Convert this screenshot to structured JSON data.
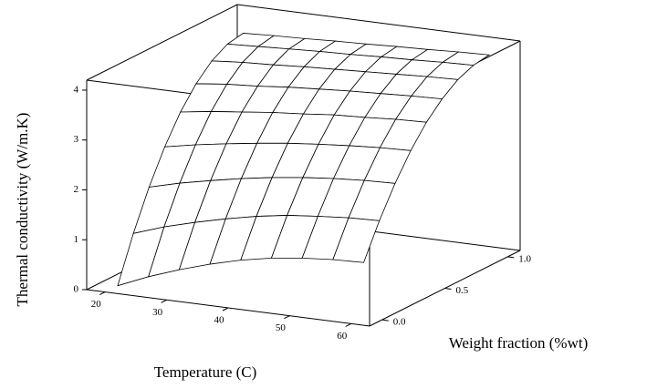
{
  "chart_data": {
    "type": "surface3d",
    "xlabel": "Temperature (C)",
    "ylabel": "Weight fraction (%wt)",
    "zlabel": "Thermal conductivity (W/m.K)",
    "x": [
      20,
      25,
      30,
      35,
      40,
      45,
      50,
      55,
      60
    ],
    "y": [
      0,
      0.125,
      0.25,
      0.375,
      0.5,
      0.625,
      0.75,
      0.875,
      1
    ],
    "z": [
      [
        0,
        0.26,
        0.48,
        0.67,
        0.83,
        0.95,
        1.03,
        1.08,
        1.1
      ],
      [
        0.89,
        1.1,
        1.27,
        1.42,
        1.55,
        1.65,
        1.71,
        1.76,
        1.78
      ],
      [
        1.66,
        1.82,
        1.95,
        2.07,
        2.17,
        2.25,
        2.31,
        2.35,
        2.37
      ],
      [
        2.31,
        2.43,
        2.53,
        2.62,
        2.7,
        2.76,
        2.81,
        2.85,
        2.87
      ],
      [
        2.85,
        2.94,
        3.01,
        3.08,
        3.13,
        3.19,
        3.22,
        3.26,
        3.28
      ],
      [
        3.26,
        3.33,
        3.37,
        3.43,
        3.47,
        3.51,
        3.54,
        3.57,
        3.59
      ],
      [
        3.56,
        3.61,
        3.64,
        3.68,
        3.71,
        3.74,
        3.77,
        3.8,
        3.82
      ],
      [
        3.74,
        3.77,
        3.8,
        3.83,
        3.85,
        3.88,
        3.9,
        3.93,
        3.95
      ],
      [
        3.8,
        3.83,
        3.85,
        3.88,
        3.9,
        3.93,
        3.95,
        3.98,
        4.0
      ]
    ],
    "xlim": [
      17,
      63
    ],
    "ylim": [
      -0.1,
      1.1
    ],
    "zlim": [
      0,
      4.2
    ],
    "xticks": [
      20,
      30,
      40,
      50,
      60
    ],
    "yticks": [
      {
        "value": 0,
        "label": "0.0"
      },
      0.5,
      {
        "value": 1,
        "label": "1.0"
      }
    ],
    "zticks": [
      0,
      1,
      2,
      3,
      4
    ],
    "color": "#000000"
  }
}
